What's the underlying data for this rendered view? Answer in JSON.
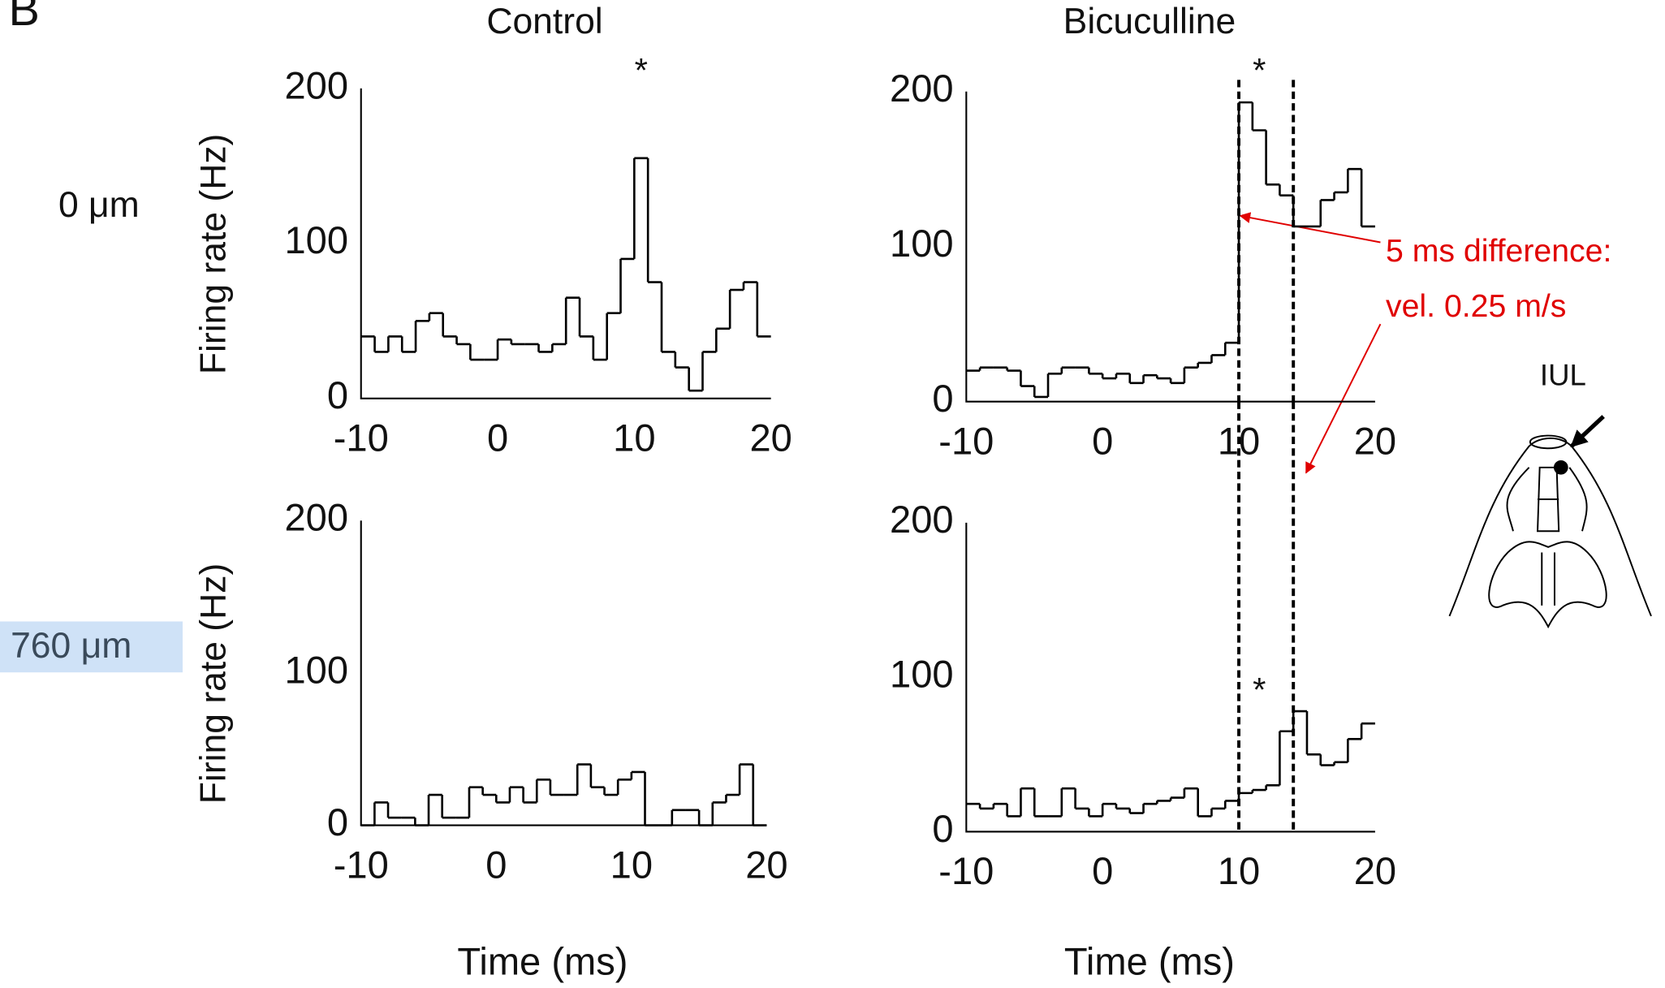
{
  "panel_label": "B",
  "row_labels": [
    "0 μm",
    "760 μm"
  ],
  "annotation_lines": [
    "5 ms difference:",
    "vel. 0.25 m/s"
  ],
  "diagram_label": "IUL",
  "chart_data": [
    {
      "type": "histogram",
      "title": "Control",
      "ylabel": "Firing rate (Hz)",
      "bins": [
        -10,
        -9,
        -8,
        -7,
        -6,
        -5,
        -4,
        -3,
        -2,
        -1,
        0,
        1,
        2,
        3,
        4,
        5,
        6,
        7,
        8,
        9,
        10,
        11,
        12,
        13,
        14,
        15,
        16,
        17,
        18,
        19,
        20
      ],
      "values": [
        40,
        30,
        40,
        30,
        50,
        55,
        40,
        35,
        25,
        25,
        38,
        35,
        35,
        30,
        35,
        65,
        40,
        25,
        55,
        90,
        155,
        75,
        30,
        20,
        5,
        30,
        45,
        70,
        75,
        40
      ],
      "color": "#000000",
      "xlim": [
        -10,
        20
      ],
      "ylim": [
        0,
        200
      ],
      "xticks": [
        -10,
        0,
        10,
        20
      ],
      "yticks": [
        0,
        100,
        200
      ],
      "annotations": [
        {
          "text": "*",
          "x": 10.5,
          "y": 210
        }
      ]
    },
    {
      "type": "histogram",
      "title": "Bicuculline",
      "bins": [
        -10,
        -9,
        -8,
        -7,
        -6,
        -5,
        -4,
        -3,
        -2,
        -1,
        0,
        1,
        2,
        3,
        4,
        5,
        6,
        7,
        8,
        9,
        10,
        11,
        12,
        13,
        14,
        15,
        16,
        17,
        18,
        19,
        20
      ],
      "values": [
        20,
        22,
        22,
        20,
        10,
        3,
        18,
        22,
        22,
        18,
        15,
        18,
        12,
        17,
        15,
        12,
        22,
        25,
        30,
        38,
        193,
        175,
        140,
        133,
        113,
        113,
        130,
        135,
        150,
        113
      ],
      "color": "#000000",
      "xlim": [
        -10,
        20
      ],
      "ylim": [
        0,
        200
      ],
      "xticks": [
        -10,
        0,
        10,
        20
      ],
      "yticks": [
        0,
        100,
        200
      ],
      "vlines": [
        10,
        14
      ],
      "annotations": [
        {
          "text": "*",
          "x": 11.5,
          "y": 212
        }
      ]
    },
    {
      "type": "histogram",
      "ylabel": "Firing rate (Hz)",
      "xlabel": "Time (ms)",
      "bins": [
        -10,
        -9,
        -8,
        -7,
        -6,
        -5,
        -4,
        -3,
        -2,
        -1,
        0,
        1,
        2,
        3,
        4,
        5,
        6,
        7,
        8,
        9,
        10,
        11,
        12,
        13,
        14,
        15,
        16,
        17,
        18,
        19,
        20
      ],
      "values": [
        0,
        15,
        5,
        5,
        0,
        20,
        5,
        5,
        25,
        20,
        15,
        25,
        15,
        30,
        20,
        20,
        40,
        25,
        20,
        30,
        35,
        0,
        0,
        10,
        10,
        0,
        15,
        20,
        40,
        0
      ],
      "color": "#000000",
      "xlim": [
        -10,
        20
      ],
      "ylim": [
        0,
        200
      ],
      "xticks": [
        -10,
        0,
        10,
        20
      ],
      "yticks": [
        0,
        100,
        200
      ]
    },
    {
      "type": "histogram",
      "xlabel": "Time (ms)",
      "bins": [
        -10,
        -9,
        -8,
        -7,
        -6,
        -5,
        -4,
        -3,
        -2,
        -1,
        0,
        1,
        2,
        3,
        4,
        5,
        6,
        7,
        8,
        9,
        10,
        11,
        12,
        13,
        14,
        15,
        16,
        17,
        18,
        19,
        20
      ],
      "values": [
        18,
        15,
        18,
        10,
        28,
        10,
        10,
        28,
        15,
        10,
        18,
        15,
        12,
        18,
        20,
        22,
        28,
        10,
        15,
        20,
        25,
        27,
        30,
        65,
        78,
        50,
        43,
        45,
        60,
        70
      ],
      "color": "#000000",
      "xlim": [
        -10,
        20
      ],
      "ylim": [
        0,
        200
      ],
      "xticks": [
        -10,
        0,
        10,
        20
      ],
      "yticks": [
        0,
        100,
        200
      ],
      "vlines": [
        10,
        14
      ],
      "annotations": [
        {
          "text": "*",
          "x": 11.5,
          "y": 90
        }
      ]
    }
  ]
}
